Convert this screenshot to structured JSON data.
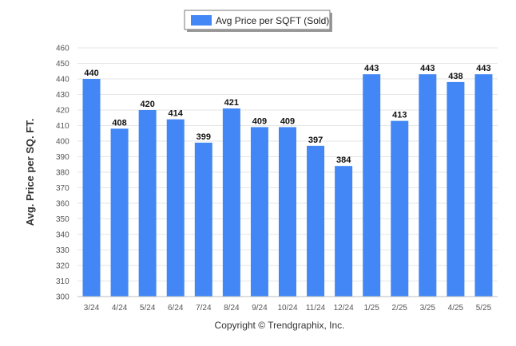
{
  "chart_data": {
    "type": "bar",
    "categories": [
      "3/24",
      "4/24",
      "5/24",
      "6/24",
      "7/24",
      "8/24",
      "9/24",
      "10/24",
      "11/24",
      "12/24",
      "1/25",
      "2/25",
      "3/25",
      "4/25",
      "5/25"
    ],
    "series": [
      {
        "name": "Avg Price per SQFT (Sold)",
        "values": [
          440,
          408,
          420,
          414,
          399,
          421,
          409,
          409,
          397,
          384,
          443,
          413,
          443,
          438,
          443
        ],
        "color": "#4287f5"
      }
    ],
    "ylabel": "Avg. Price per SQ. FT.",
    "xlabel": "",
    "ylim": [
      300,
      460
    ],
    "ytick_step": 10,
    "grid": true,
    "legend_position": "top-center",
    "data_labels": true
  },
  "footer": {
    "copyright": "Copyright © Trendgraphix, Inc."
  }
}
